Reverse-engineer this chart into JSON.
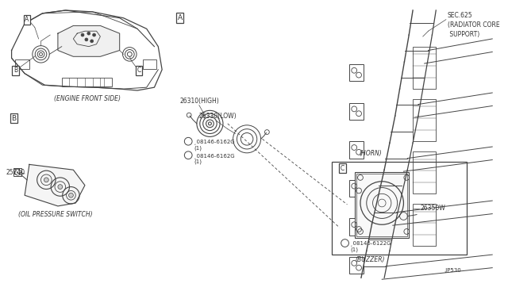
{
  "bg_color": "#ffffff",
  "line_color": "#444444",
  "text_color": "#333333",
  "labels": {
    "sec625": "SEC.625\n(RADIATOR CORE\n SUPPORT)",
    "engine_front": "(ENGINE FRONT SIDE)",
    "oil_pressure": "(OIL PRESSURE SWITCH)",
    "horn_label": "(HORN)",
    "buzzer": "(BUZZER)",
    "p_number": ".JP530",
    "part_26310": "26310(HIGH)",
    "part_26330": "26330(LOW)",
    "part_25240": "25240",
    "part_26350w": "26350W",
    "bolt1": "¸08146-6162G\n(1)",
    "bolt2": "¸08146-6162G\n(1)",
    "bolt3": "¸08146-6122G\n(1)"
  },
  "fs": 5.5,
  "fs_med": 6.5
}
